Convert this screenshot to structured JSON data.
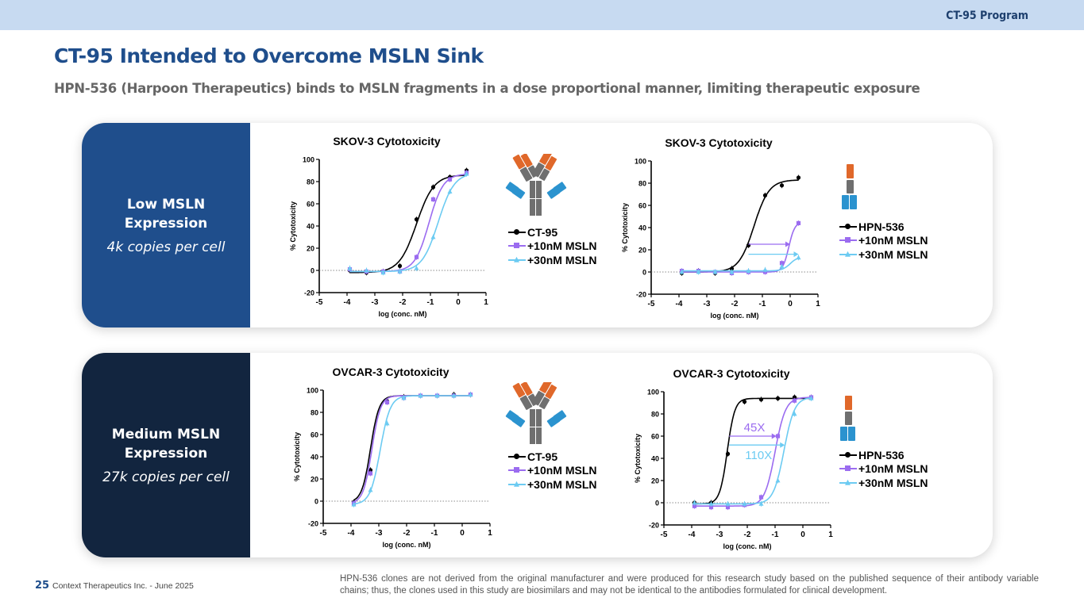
{
  "header": {
    "program": "CT-95 Program",
    "title": "CT-95 Intended to Overcome MSLN Sink",
    "subtitle": "HPN-536 (Harpoon Therapeutics) binds to MSLN fragments in a dose proportional manner, limiting therapeutic exposure"
  },
  "rows": [
    {
      "heading_line1": "Low MSLN",
      "heading_line2": "Expression",
      "copies": "4k copies per cell",
      "color": "#1f4e8c"
    },
    {
      "heading_line1": "Medium MSLN",
      "heading_line2": "Expression",
      "copies": "27k copies per cell",
      "color": "#12253f"
    }
  ],
  "colors": {
    "black": "#000000",
    "purple": "#9b6cf0",
    "cyan": "#6ccbf2",
    "antibody_orange": "#e0682a",
    "antibody_gray": "#6f6f6f",
    "antibody_blue": "#2b93cf"
  },
  "legends": [
    {
      "icon": "ct95-antibody-icon",
      "items": [
        "CT-95",
        "+10nM MSLN",
        "+30nM MSLN"
      ]
    },
    {
      "icon": "hpn536-trispecific-icon",
      "items": [
        "HPN-536",
        "+10nM MSLN",
        "+30nM MSLN"
      ]
    },
    {
      "icon": "ct95-antibody-icon",
      "items": [
        "CT-95",
        "+10nM MSLN",
        "+30nM MSLN"
      ]
    },
    {
      "icon": "hpn536-trispecific-icon",
      "items": [
        "HPN-536",
        "+10nM MSLN",
        "+30nM MSLN"
      ]
    }
  ],
  "chart_data": [
    {
      "type": "line",
      "title": "SKOV-3 Cytotoxicity",
      "xlabel": "log (conc. nM)",
      "ylabel": "% Cytotoxicity",
      "xlim": [
        -5,
        1
      ],
      "ylim": [
        -20,
        100
      ],
      "xticks": [
        -5,
        -4,
        -3,
        -2,
        -1,
        0,
        1
      ],
      "yticks": [
        -20,
        0,
        20,
        40,
        60,
        80,
        100
      ],
      "reference_line_y": 0,
      "legend": "right",
      "x": [
        -3.9,
        -3.3,
        -2.7,
        -2.1,
        -1.5,
        -0.9,
        -0.3,
        0.3
      ],
      "series": [
        {
          "name": "CT-95",
          "color": "#000000",
          "marker": "circle",
          "values": [
            0,
            -2,
            -1,
            4,
            46,
            75,
            84,
            90
          ],
          "fit": {
            "bottom": -2,
            "top": 86,
            "logEC50": -1.5,
            "hill": 1.4
          }
        },
        {
          "name": "+10nM MSLN",
          "color": "#9b6cf0",
          "marker": "square",
          "values": [
            1,
            -1,
            -1,
            -1,
            12,
            64,
            82,
            88
          ],
          "fit": {
            "bottom": -1,
            "top": 87,
            "logEC50": -1.05,
            "hill": 1.7
          }
        },
        {
          "name": "+30nM MSLN",
          "color": "#6ccbf2",
          "marker": "triangle",
          "values": [
            2,
            0,
            -2,
            -1,
            2,
            30,
            71,
            87
          ],
          "fit": {
            "bottom": -1,
            "top": 88,
            "logEC50": -0.72,
            "hill": 1.5
          }
        }
      ],
      "annotations": []
    },
    {
      "type": "line",
      "title": "SKOV-3 Cytotoxicity",
      "xlabel": "log (conc. nM)",
      "ylabel": "% Cytotoxicity",
      "xlim": [
        -5,
        1
      ],
      "ylim": [
        -20,
        100
      ],
      "xticks": [
        -5,
        -4,
        -3,
        -2,
        -1,
        0,
        1
      ],
      "yticks": [
        -20,
        0,
        20,
        40,
        60,
        80,
        100
      ],
      "reference_line_y": 0,
      "legend": "right",
      "x": [
        -3.9,
        -3.3,
        -2.7,
        -2.1,
        -1.5,
        -0.9,
        -0.3,
        0.3
      ],
      "series": [
        {
          "name": "HPN-536",
          "color": "#000000",
          "marker": "circle",
          "values": [
            -1,
            1,
            -1,
            3,
            24,
            69,
            78,
            85
          ],
          "fit": {
            "bottom": 0,
            "top": 83,
            "logEC50": -1.3,
            "hill": 1.6
          }
        },
        {
          "name": "+10nM MSLN",
          "color": "#9b6cf0",
          "marker": "square",
          "values": [
            1,
            1,
            0,
            -1,
            0,
            0,
            8,
            44
          ],
          "fit": {
            "bottom": 0,
            "top": 45,
            "logEC50": -0.05,
            "hill": 4
          }
        },
        {
          "name": "+30nM MSLN",
          "color": "#6ccbf2",
          "marker": "triangle",
          "values": [
            0,
            0,
            0,
            0,
            1,
            2,
            5,
            13
          ],
          "fit": {
            "bottom": 1,
            "top": 14,
            "logEC50": 0.0,
            "hill": 3
          }
        }
      ],
      "annotations": [
        {
          "type": "arrow",
          "color": "#9b6cf0",
          "y": 25,
          "x_from": -1.5,
          "x_to": 0.0,
          "label": ""
        },
        {
          "type": "arrow",
          "color": "#6ccbf2",
          "y": 16,
          "x_from": -1.5,
          "x_to": 0.3,
          "label": ""
        }
      ]
    },
    {
      "type": "line",
      "title": "OVCAR-3 Cytotoxicity",
      "xlabel": "log (conc. nM)",
      "ylabel": "% Cytotoxicity",
      "xlim": [
        -5,
        1
      ],
      "ylim": [
        -20,
        100
      ],
      "xticks": [
        -5,
        -4,
        -3,
        -2,
        -1,
        0,
        1
      ],
      "yticks": [
        -20,
        0,
        20,
        40,
        60,
        80,
        100
      ],
      "reference_line_y": 0,
      "legend": "right",
      "x": [
        -3.9,
        -3.3,
        -2.7,
        -2.1,
        -1.5,
        -0.9,
        -0.3,
        0.3
      ],
      "series": [
        {
          "name": "CT-95",
          "color": "#000000",
          "marker": "circle",
          "values": [
            -1,
            28,
            90,
            94,
            95,
            95,
            96,
            96
          ],
          "fit": {
            "bottom": -1,
            "top": 95,
            "logEC50": -3.3,
            "hill": 2.8
          }
        },
        {
          "name": "+10nM MSLN",
          "color": "#9b6cf0",
          "marker": "square",
          "values": [
            -2,
            25,
            89,
            93,
            95,
            95,
            95,
            96
          ],
          "fit": {
            "bottom": -2,
            "top": 95,
            "logEC50": -3.25,
            "hill": 2.8
          }
        },
        {
          "name": "+30nM MSLN",
          "color": "#6ccbf2",
          "marker": "triangle",
          "values": [
            -3,
            10,
            70,
            93,
            95,
            95,
            95,
            96
          ],
          "fit": {
            "bottom": -3,
            "top": 95,
            "logEC50": -2.95,
            "hill": 2.4
          }
        }
      ],
      "annotations": []
    },
    {
      "type": "line",
      "title": "OVCAR-3 Cytotoxicity",
      "xlabel": "log (conc. nM)",
      "ylabel": "% Cytotoxicity",
      "xlim": [
        -5,
        1
      ],
      "ylim": [
        -20,
        100
      ],
      "xticks": [
        -5,
        -4,
        -3,
        -2,
        -1,
        0,
        1
      ],
      "yticks": [
        -20,
        0,
        20,
        40,
        60,
        80,
        100
      ],
      "reference_line_y": 0,
      "legend": "right",
      "x": [
        -3.9,
        -3.3,
        -2.7,
        -2.1,
        -1.5,
        -0.9,
        -0.3,
        0.3
      ],
      "series": [
        {
          "name": "HPN-536",
          "color": "#000000",
          "marker": "circle",
          "values": [
            0,
            0,
            44,
            91,
            93,
            94,
            95,
            95
          ],
          "fit": {
            "bottom": -1,
            "top": 94,
            "logEC50": -2.72,
            "hill": 3.2
          }
        },
        {
          "name": "+10nM MSLN",
          "color": "#9b6cf0",
          "marker": "square",
          "values": [
            -3,
            -4,
            -4,
            -2,
            5,
            60,
            92,
            95
          ],
          "fit": {
            "bottom": -3,
            "top": 95,
            "logEC50": -1.0,
            "hill": 2.3
          }
        },
        {
          "name": "+30nM MSLN",
          "color": "#6ccbf2",
          "marker": "triangle",
          "values": [
            0,
            -1,
            -1,
            -1,
            -1,
            20,
            80,
            94
          ],
          "fit": {
            "bottom": -1,
            "top": 95,
            "logEC50": -0.68,
            "hill": 2.3
          }
        }
      ],
      "annotations": [
        {
          "type": "arrow",
          "color": "#9b6cf0",
          "y": 60,
          "x_from": -2.65,
          "x_to": -0.95,
          "label": "45X"
        },
        {
          "type": "arrow",
          "color": "#6ccbf2",
          "y": 52,
          "x_from": -2.65,
          "x_to": -0.65,
          "label": "110X"
        }
      ]
    }
  ],
  "footer": {
    "page": "25",
    "company": "Context Therapeutics Inc. -  June 2025",
    "disclaimer": "HPN-536 clones are not derived from the original manufacturer and were produced for this research study based on the published sequence of their antibody variable chains; thus, the clones used in this study are biosimilars and may not be identical to the antibodies formulated for clinical development."
  }
}
